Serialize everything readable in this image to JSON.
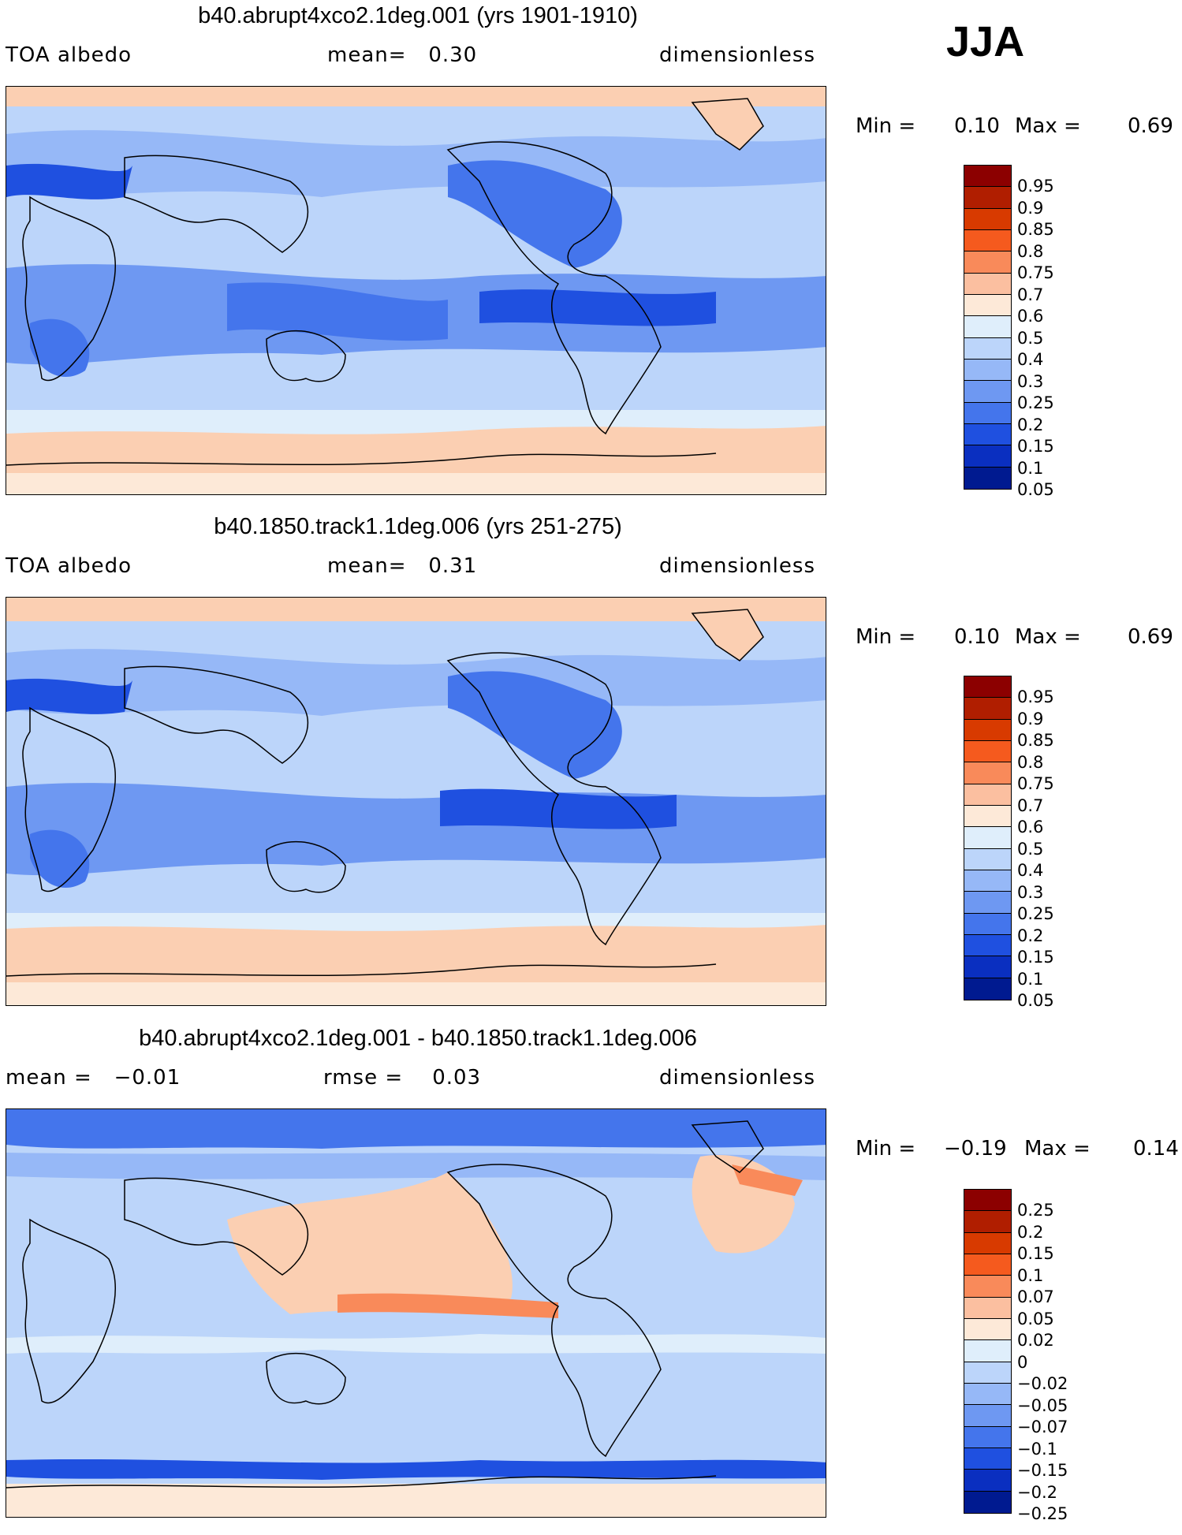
{
  "season": "JJA",
  "panels": [
    {
      "title": "b40.abrupt4xco2.1deg.001 (yrs 1901-1910)",
      "left_label": "TOA albedo",
      "center_label": "mean=   0.30",
      "right_label": "dimensionless",
      "min_label": "Min =",
      "min_value": "0.10",
      "max_label": "Max =",
      "max_value": "0.69",
      "colorbar": {
        "colors": [
          "#8c0000",
          "#b01e00",
          "#d83a00",
          "#f55a1e",
          "#f98a5a",
          "#fbbfa0",
          "#fde9d8",
          "#dfeefb",
          "#bcd5fa",
          "#96b8f7",
          "#6e98f2",
          "#4475ec",
          "#1f50e0",
          "#0a2fc0",
          "#001a90"
        ],
        "labels": [
          "0.95",
          "0.9",
          "0.85",
          "0.8",
          "0.75",
          "0.7",
          "0.6",
          "0.5",
          "0.4",
          "0.3",
          "0.25",
          "0.2",
          "0.15",
          "0.1",
          "0.05"
        ]
      }
    },
    {
      "title": "b40.1850.track1.1deg.006 (yrs 251-275)",
      "left_label": "TOA albedo",
      "center_label": "mean=   0.31",
      "right_label": "dimensionless",
      "min_label": "Min =",
      "min_value": "0.10",
      "max_label": "Max =",
      "max_value": "0.69",
      "colorbar": {
        "colors": [
          "#8c0000",
          "#b01e00",
          "#d83a00",
          "#f55a1e",
          "#f98a5a",
          "#fbbfa0",
          "#fde9d8",
          "#dfeefb",
          "#bcd5fa",
          "#96b8f7",
          "#6e98f2",
          "#4475ec",
          "#1f50e0",
          "#0a2fc0",
          "#001a90"
        ],
        "labels": [
          "0.95",
          "0.9",
          "0.85",
          "0.8",
          "0.75",
          "0.7",
          "0.6",
          "0.5",
          "0.4",
          "0.3",
          "0.25",
          "0.2",
          "0.15",
          "0.1",
          "0.05"
        ]
      }
    },
    {
      "title": "b40.abrupt4xco2.1deg.001 - b40.1850.track1.1deg.006",
      "left_label": "mean =   −0.01",
      "center_label": "rmse =    0.03",
      "right_label": "dimensionless",
      "min_label": "Min =",
      "min_value": "−0.19",
      "max_label": "Max =",
      "max_value": "0.14",
      "colorbar": {
        "colors": [
          "#8c0000",
          "#b01e00",
          "#d83a00",
          "#f55a1e",
          "#f98a5a",
          "#fbbfa0",
          "#fde9d8",
          "#dfeefb",
          "#bcd5fa",
          "#96b8f7",
          "#6e98f2",
          "#4475ec",
          "#1f50e0",
          "#0a2fc0",
          "#001a90"
        ],
        "labels": [
          "0.25",
          "0.2",
          "0.15",
          "0.1",
          "0.07",
          "0.05",
          "0.02",
          "0",
          "−0.02",
          "−0.05",
          "−0.07",
          "−0.1",
          "−0.15",
          "−0.2",
          "−0.25"
        ]
      }
    }
  ],
  "chart_data": [
    {
      "type": "heatmap",
      "title": "b40.abrupt4xco2.1deg.001 (yrs 1901-1910)",
      "variable": "TOA albedo",
      "units": "dimensionless",
      "mean": 0.3,
      "min": 0.1,
      "max": 0.69,
      "levels": [
        0.05,
        0.1,
        0.15,
        0.2,
        0.25,
        0.3,
        0.4,
        0.5,
        0.6,
        0.7,
        0.75,
        0.8,
        0.85,
        0.9,
        0.95
      ],
      "season": "JJA"
    },
    {
      "type": "heatmap",
      "title": "b40.1850.track1.1deg.006 (yrs 251-275)",
      "variable": "TOA albedo",
      "units": "dimensionless",
      "mean": 0.31,
      "min": 0.1,
      "max": 0.69,
      "levels": [
        0.05,
        0.1,
        0.15,
        0.2,
        0.25,
        0.3,
        0.4,
        0.5,
        0.6,
        0.7,
        0.75,
        0.8,
        0.85,
        0.9,
        0.95
      ],
      "season": "JJA"
    },
    {
      "type": "heatmap",
      "title": "b40.abrupt4xco2.1deg.001 - b40.1850.track1.1deg.006",
      "units": "dimensionless",
      "mean": -0.01,
      "rmse": 0.03,
      "min": -0.19,
      "max": 0.14,
      "levels": [
        -0.25,
        -0.2,
        -0.15,
        -0.1,
        -0.07,
        -0.05,
        -0.02,
        0,
        0.02,
        0.05,
        0.07,
        0.1,
        0.15,
        0.2,
        0.25
      ],
      "season": "JJA"
    }
  ]
}
